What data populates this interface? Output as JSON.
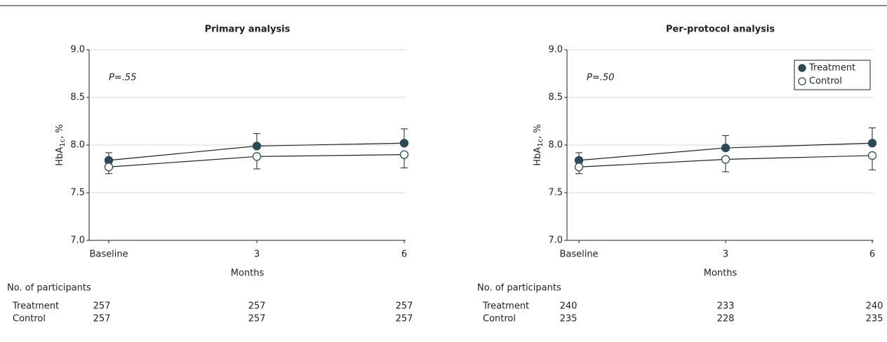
{
  "chart_data": [
    {
      "type": "line",
      "title": "Primary analysis",
      "xlabel": "Months",
      "ylabel": {
        "main": "HbA",
        "sub": "1c",
        "suffix": ", %"
      },
      "categories": [
        "Baseline",
        "3",
        "6"
      ],
      "ylim": [
        7,
        9
      ],
      "yticks": [
        {
          "value": 7,
          "label": "7.0"
        },
        {
          "value": 7.5,
          "label": "7.5"
        },
        {
          "value": 8,
          "label": "8.0"
        },
        {
          "value": 8.5,
          "label": "8.5"
        },
        {
          "value": 9,
          "label": "9.0"
        }
      ],
      "grid": true,
      "annotation": "P=.55",
      "series": [
        {
          "name": "Treatment",
          "color": "#2b4a55",
          "marker": "filled",
          "values": [
            7.84,
            7.99,
            8.02
          ],
          "errors": [
            0.08,
            0.13,
            0.15
          ]
        },
        {
          "name": "Control",
          "color": "#2b4a55",
          "marker": "open",
          "values": [
            7.77,
            7.88,
            7.9
          ],
          "errors": [
            0.07,
            0.13,
            0.14
          ]
        }
      ],
      "participants": {
        "title": "No. of participants",
        "rows": [
          {
            "name": "Treatment",
            "values": [
              257,
              257,
              257
            ]
          },
          {
            "name": "Control",
            "values": [
              257,
              257,
              257
            ]
          }
        ]
      }
    },
    {
      "type": "line",
      "title": "Per-protocol analysis",
      "xlabel": "Months",
      "ylabel": {
        "main": "HbA",
        "sub": "1c",
        "suffix": ", %"
      },
      "categories": [
        "Baseline",
        "3",
        "6"
      ],
      "ylim": [
        7,
        9
      ],
      "yticks": [
        {
          "value": 7,
          "label": "7.0"
        },
        {
          "value": 7.5,
          "label": "7.5"
        },
        {
          "value": 8,
          "label": "8.0"
        },
        {
          "value": 8.5,
          "label": "8.5"
        },
        {
          "value": 9,
          "label": "9.0"
        }
      ],
      "grid": true,
      "legend": "upper right",
      "annotation": "P=.50",
      "series": [
        {
          "name": "Treatment",
          "color": "#2b4a55",
          "marker": "filled",
          "values": [
            7.84,
            7.97,
            8.02
          ],
          "errors": [
            0.08,
            0.13,
            0.16
          ]
        },
        {
          "name": "Control",
          "color": "#2b4a55",
          "marker": "open",
          "values": [
            7.77,
            7.85,
            7.89
          ],
          "errors": [
            0.07,
            0.13,
            0.15
          ]
        }
      ],
      "participants": {
        "title": "No. of participants",
        "rows": [
          {
            "name": "Treatment",
            "values": [
              240,
              233,
              240
            ]
          },
          {
            "name": "Control",
            "values": [
              235,
              228,
              235
            ]
          }
        ]
      }
    }
  ]
}
